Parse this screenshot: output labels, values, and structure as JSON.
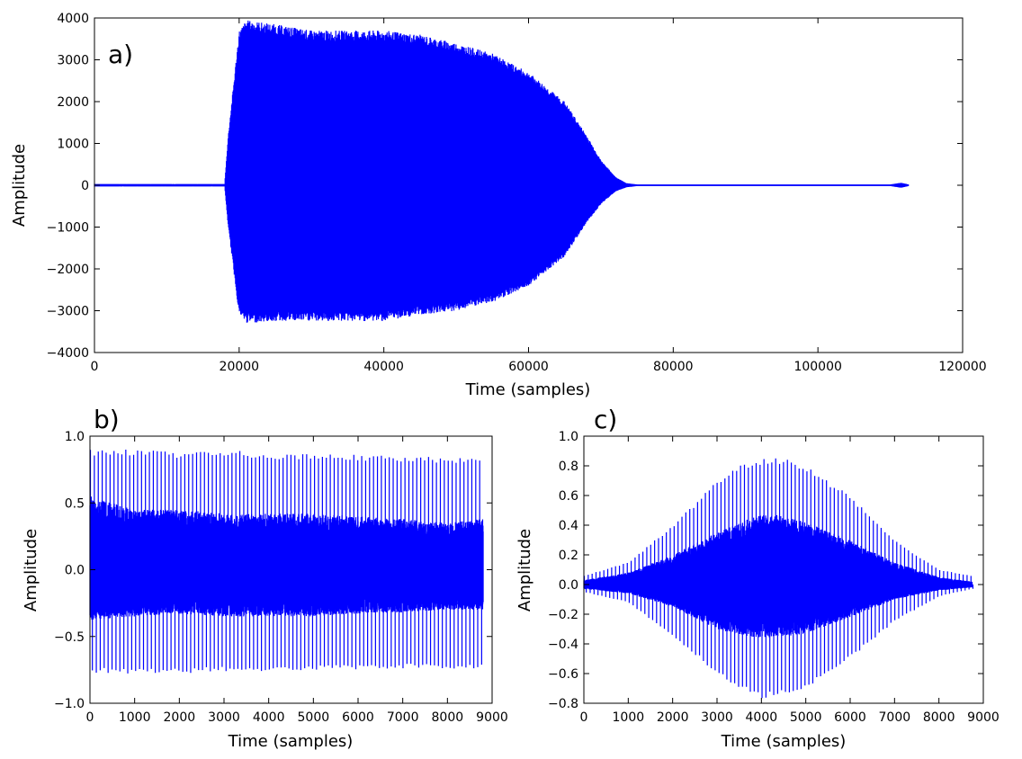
{
  "chart_data": [
    {
      "id": "a",
      "type": "line",
      "panel_label": "a)",
      "title": "",
      "xlabel": "Time (samples)",
      "ylabel": "Amplitude",
      "xlim": [
        0,
        120000
      ],
      "ylim": [
        -4000,
        4000
      ],
      "xticks": [
        0,
        20000,
        40000,
        60000,
        80000,
        100000,
        120000
      ],
      "yticks": [
        -4000,
        -3000,
        -2000,
        -1000,
        0,
        1000,
        2000,
        3000,
        4000
      ],
      "xtick_labels": [
        "0",
        "20000",
        "40000",
        "60000",
        "80000",
        "100000",
        "120000"
      ],
      "ytick_labels": [
        "−4000",
        "−3000",
        "−2000",
        "−1000",
        "0",
        "1000",
        "2000",
        "3000",
        "4000"
      ],
      "color": "#0000ff",
      "series": [
        {
          "x": [
            0,
            18000,
            18500,
            20000,
            21000,
            25000,
            30000,
            35000,
            40000,
            45000,
            50000,
            55000,
            60000,
            65000,
            68000,
            70000,
            72000,
            73500,
            75000,
            80000,
            100000,
            110000,
            111500,
            112500
          ],
          "upper": [
            30,
            30,
            1200,
            3700,
            3950,
            3850,
            3700,
            3700,
            3700,
            3600,
            3400,
            3150,
            2700,
            2000,
            1200,
            600,
            200,
            50,
            20,
            20,
            20,
            20,
            60,
            20
          ],
          "lower": [
            -30,
            -30,
            -1000,
            -3100,
            -3300,
            -3250,
            -3250,
            -3250,
            -3250,
            -3100,
            -3000,
            -2800,
            -2400,
            -1700,
            -900,
            -450,
            -150,
            -50,
            -20,
            -20,
            -20,
            -20,
            -60,
            -20
          ]
        }
      ]
    },
    {
      "id": "b",
      "type": "line",
      "panel_label": "b)",
      "title": "",
      "xlabel": "Time (samples)",
      "ylabel": "Amplitude",
      "xlim": [
        0,
        9000
      ],
      "ylim": [
        -1.0,
        1.0
      ],
      "xticks": [
        0,
        1000,
        2000,
        3000,
        4000,
        5000,
        6000,
        7000,
        8000,
        9000
      ],
      "yticks": [
        -1.0,
        -0.5,
        0.0,
        0.5,
        1.0
      ],
      "xtick_labels": [
        "0",
        "1000",
        "2000",
        "3000",
        "4000",
        "5000",
        "6000",
        "7000",
        "8000",
        "9000"
      ],
      "ytick_labels": [
        "−1.0",
        "−0.5",
        "0.0",
        "0.5",
        "1.0"
      ],
      "color": "#0000ff",
      "series": [
        {
          "period": 88,
          "x_end": 8800,
          "x": [
            0,
            1000,
            2000,
            3000,
            4000,
            5000,
            6000,
            7000,
            8000,
            8800
          ],
          "peak_high": [
            0.9,
            0.9,
            0.88,
            0.9,
            0.87,
            0.87,
            0.86,
            0.85,
            0.84,
            0.83
          ],
          "peak_low": [
            -0.77,
            -0.78,
            -0.78,
            -0.76,
            -0.76,
            -0.75,
            -0.75,
            -0.74,
            -0.74,
            -0.74
          ],
          "envelope_high": [
            0.55,
            0.45,
            0.45,
            0.42,
            0.42,
            0.42,
            0.4,
            0.38,
            0.35,
            0.38
          ],
          "envelope_low": [
            -0.38,
            -0.35,
            -0.33,
            -0.35,
            -0.35,
            -0.35,
            -0.33,
            -0.32,
            -0.3,
            -0.3
          ]
        }
      ]
    },
    {
      "id": "c",
      "type": "line",
      "panel_label": "c)",
      "title": "",
      "xlabel": "Time (samples)",
      "ylabel": "Amplitude",
      "xlim": [
        0,
        9000
      ],
      "ylim": [
        -0.8,
        1.0
      ],
      "xticks": [
        0,
        1000,
        2000,
        3000,
        4000,
        5000,
        6000,
        7000,
        8000,
        9000
      ],
      "yticks": [
        -0.8,
        -0.6,
        -0.4,
        -0.2,
        0.0,
        0.2,
        0.4,
        0.6,
        0.8,
        1.0
      ],
      "xtick_labels": [
        "0",
        "1000",
        "2000",
        "3000",
        "4000",
        "5000",
        "6000",
        "7000",
        "8000",
        "9000"
      ],
      "ytick_labels": [
        "−0.8",
        "−0.6",
        "−0.4",
        "−0.2",
        "0.0",
        "0.2",
        "0.4",
        "0.6",
        "0.8",
        "1.0"
      ],
      "color": "#0000ff",
      "series": [
        {
          "period": 88,
          "x_end": 8750,
          "x": [
            0,
            1000,
            2000,
            3000,
            3500,
            4000,
            4500,
            5000,
            6000,
            7000,
            8000,
            8750
          ],
          "peak_high": [
            0.06,
            0.15,
            0.4,
            0.7,
            0.8,
            0.85,
            0.85,
            0.8,
            0.6,
            0.3,
            0.1,
            0.06
          ],
          "peak_low": [
            -0.05,
            -0.12,
            -0.35,
            -0.6,
            -0.7,
            -0.77,
            -0.74,
            -0.7,
            -0.5,
            -0.25,
            -0.08,
            -0.03
          ],
          "envelope_high": [
            0.03,
            0.08,
            0.2,
            0.35,
            0.42,
            0.47,
            0.47,
            0.42,
            0.3,
            0.15,
            0.05,
            0.02
          ],
          "envelope_low": [
            -0.03,
            -0.06,
            -0.15,
            -0.3,
            -0.34,
            -0.36,
            -0.35,
            -0.33,
            -0.22,
            -0.1,
            -0.04,
            -0.02
          ]
        }
      ]
    }
  ]
}
